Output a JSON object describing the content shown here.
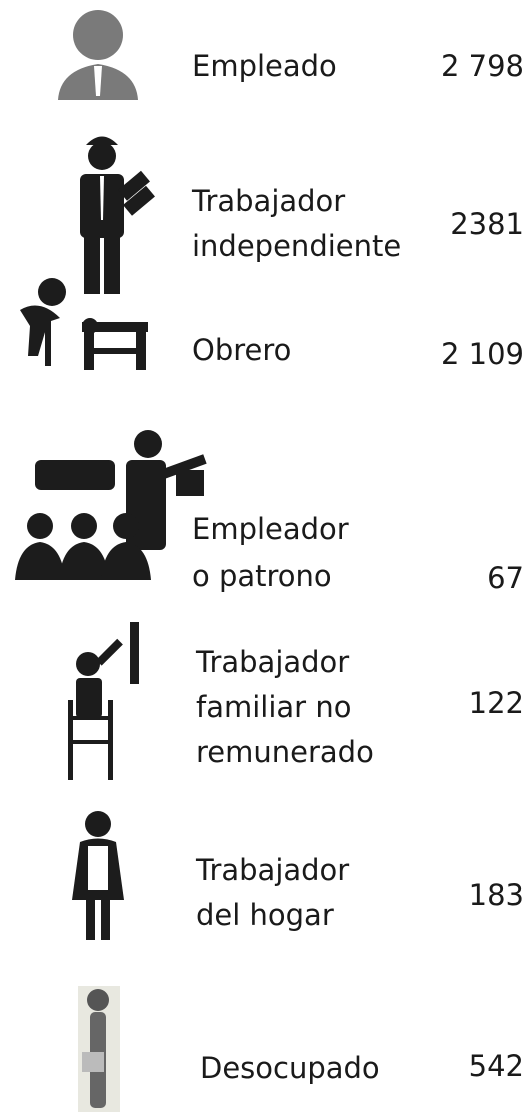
{
  "rows": [
    {
      "label": [
        "Empleado"
      ],
      "value": "2 798"
    },
    {
      "label": [
        "Trabajador",
        "independiente"
      ],
      "value": "2381"
    },
    {
      "label": [
        "Obrero"
      ],
      "value": "2 109"
    },
    {
      "label": [
        "Empleador",
        "o patrono"
      ],
      "value": "67"
    },
    {
      "label": [
        "Trabajador",
        "familiar no",
        "remunerado"
      ],
      "value": "122"
    },
    {
      "label": [
        "Trabajador",
        "del hogar"
      ],
      "value": "183"
    },
    {
      "label": [
        "Desocupado"
      ],
      "value": "542"
    }
  ]
}
